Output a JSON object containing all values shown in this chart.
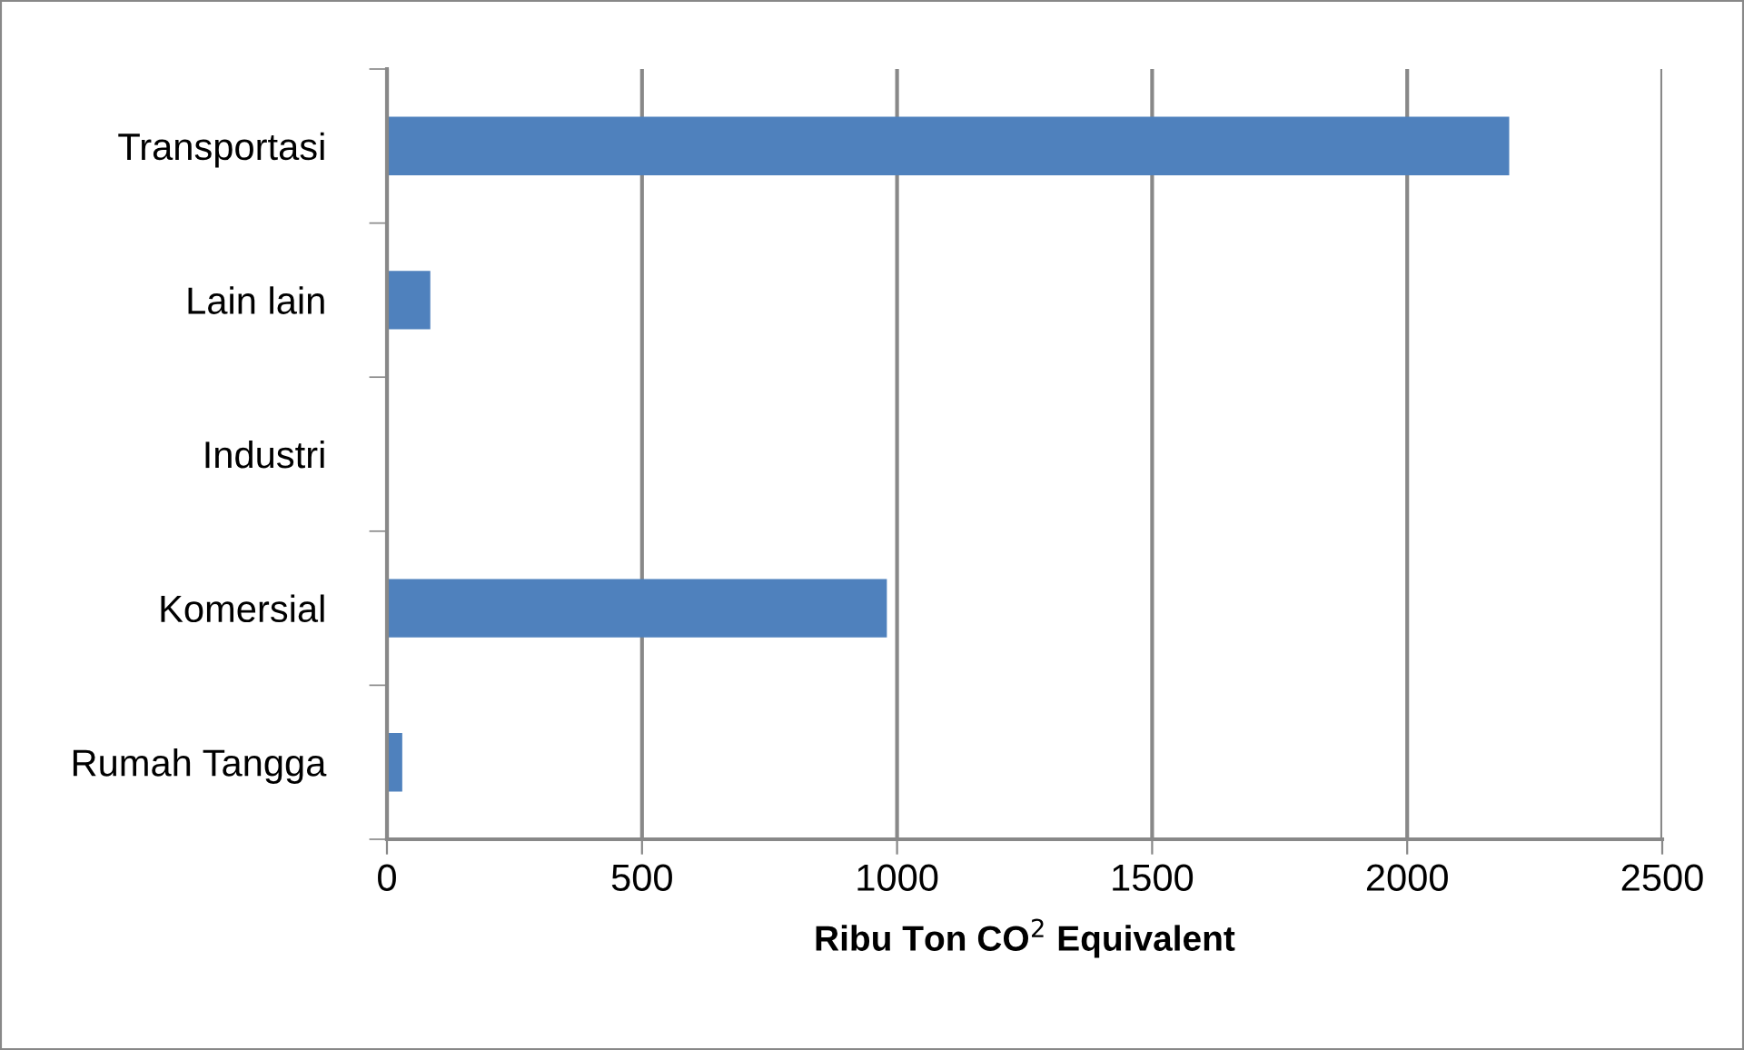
{
  "chart_data": {
    "type": "bar",
    "orientation": "horizontal",
    "categories": [
      "Transportasi",
      "Lain lain",
      "Industri",
      "Komersial",
      "Rumah Tangga"
    ],
    "values": [
      2200,
      85,
      0,
      980,
      30
    ],
    "color": "#4f81bd",
    "xlim": [
      0,
      2500
    ],
    "xticks": [
      0,
      500,
      1000,
      1500,
      2000,
      2500
    ],
    "xlabel": "Ribu Ton CO$^{2}$ Equivalent",
    "grid": "x"
  }
}
